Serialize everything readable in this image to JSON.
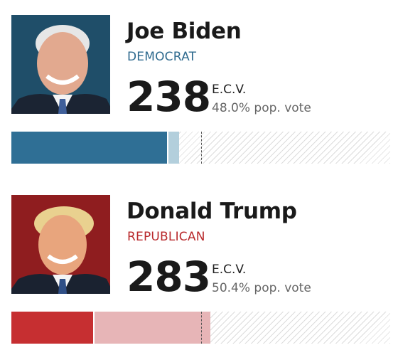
{
  "total_ecv": 538,
  "win_threshold": 270,
  "candidates": [
    {
      "id": "biden",
      "name": "Joe Biden",
      "party": "DEMOCRAT",
      "ecv": "238",
      "ecv_label": "E.C.V.",
      "pop_vote": "48.0% pop. vote",
      "colors": {
        "party": "#2e6a8e",
        "won": "#2f6f95",
        "lean": "#b3cfdc",
        "photo_bg": "#1f4e69"
      },
      "bar": {
        "won_ecv": 221,
        "lean_ecv": 17
      }
    },
    {
      "id": "trump",
      "name": "Donald Trump",
      "party": "REPUBLICAN",
      "ecv": "283",
      "ecv_label": "E.C.V.",
      "pop_vote": "50.4% pop. vote",
      "colors": {
        "party": "#b8282b",
        "won": "#c62f31",
        "lean": "#e7b5b7",
        "photo_bg": "#8f1d1f"
      },
      "bar": {
        "won_ecv": 116,
        "lean_ecv": 167
      }
    }
  ]
}
